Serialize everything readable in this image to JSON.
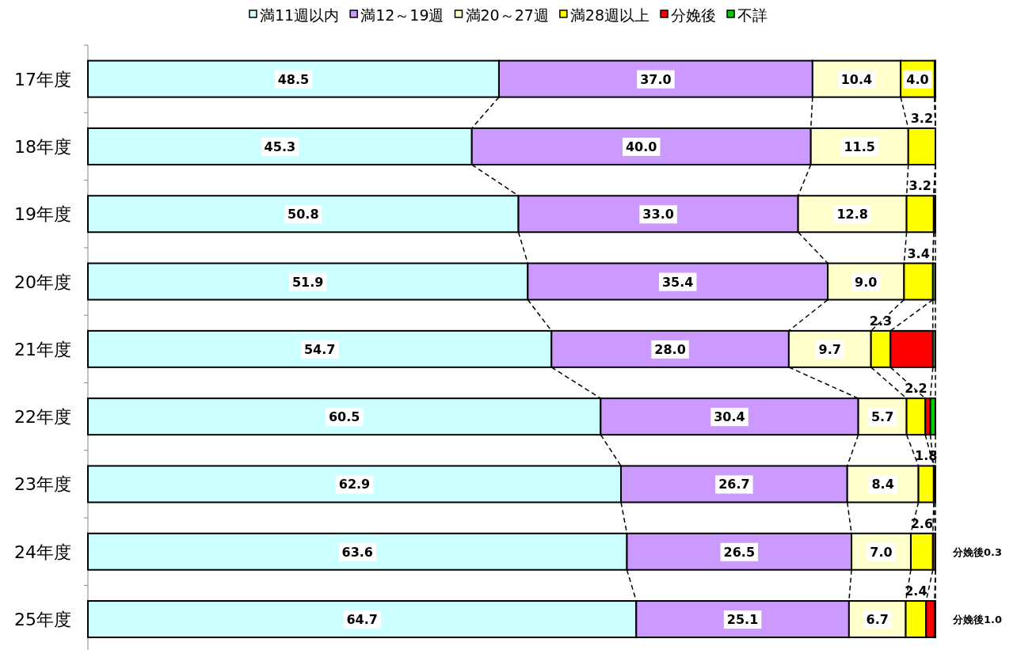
{
  "chart_data": {
    "type": "bar",
    "orientation": "horizontal",
    "stacked": true,
    "legend": "top",
    "tick_labels": "y",
    "xlim": [
      0,
      100
    ],
    "categories": [
      "17年度",
      "18年度",
      "19年度",
      "20年度",
      "21年度",
      "22年度",
      "23年度",
      "24年度",
      "25年度"
    ],
    "series": [
      {
        "name": "満11週以内",
        "color": "#ccffff",
        "values": [
          48.5,
          45.3,
          50.8,
          51.9,
          54.7,
          60.5,
          62.9,
          63.6,
          64.7
        ],
        "value_labels": [
          "48.5",
          "45.3",
          "50.8",
          "51.9",
          "54.7",
          "60.5",
          "62.9",
          "63.6",
          "64.7"
        ]
      },
      {
        "name": "満12～19週",
        "color": "#cc99ff",
        "values": [
          37.0,
          40.0,
          33.0,
          35.4,
          28.0,
          30.4,
          26.7,
          26.5,
          25.1
        ],
        "value_labels": [
          "37.0",
          "40.0",
          "33.0",
          "35.4",
          "28.0",
          "30.4",
          "26.7",
          "26.5",
          "25.1"
        ]
      },
      {
        "name": "満20～27週",
        "color": "#ffffcc",
        "values": [
          10.4,
          11.5,
          12.8,
          9.0,
          9.7,
          5.7,
          8.4,
          7.0,
          6.7
        ],
        "value_labels": [
          "10.4",
          "11.5",
          "12.8",
          "9.0",
          "9.7",
          "5.7",
          "8.4",
          "7.0",
          "6.7"
        ]
      },
      {
        "name": "満28週以上",
        "color": "#ffff00",
        "values": [
          4.0,
          3.2,
          3.2,
          3.4,
          2.3,
          2.2,
          1.8,
          2.6,
          2.4
        ],
        "value_labels": [
          "4.0",
          "3.2",
          "3.2",
          "3.4",
          "2.3",
          "2.2",
          "1.8",
          "2.6",
          "2.4"
        ]
      },
      {
        "name": "分娩後",
        "color": "#ff0000",
        "values": [
          0,
          0,
          0,
          0,
          5.0,
          0.6,
          null,
          0.3,
          1.0
        ]
      },
      {
        "name": "不詳",
        "color": "#00cc00",
        "values": [
          0.1,
          0,
          0.2,
          0.3,
          0.3,
          0.6,
          0.2,
          0,
          0.1
        ]
      }
    ],
    "annotations": [
      {
        "text": "分娩後0.3",
        "x": 100,
        "y": "24年度"
      },
      {
        "text": "分娩後1.0",
        "x": 100,
        "y": "25年度"
      }
    ]
  }
}
